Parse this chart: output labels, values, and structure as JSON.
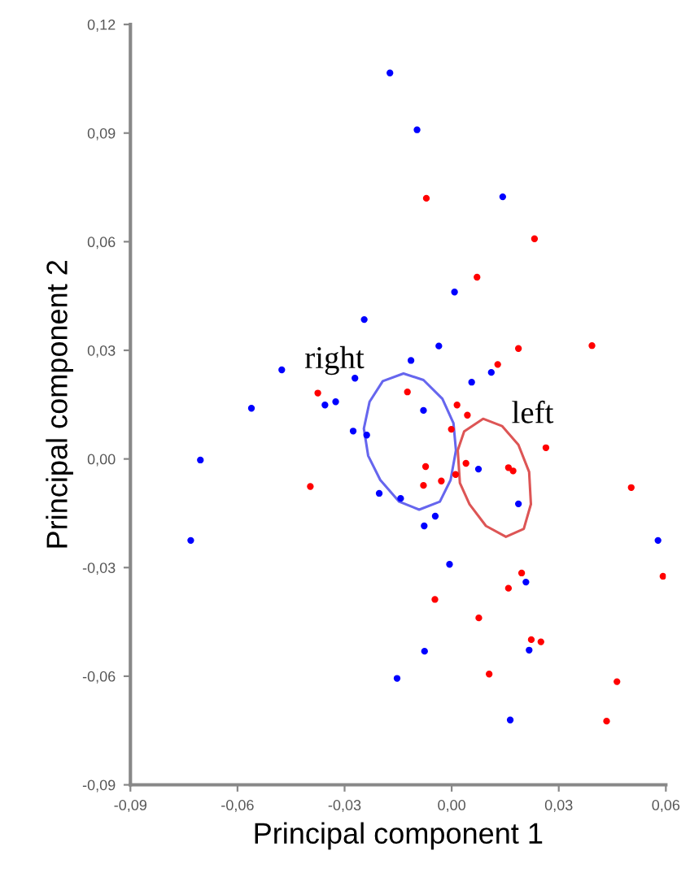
{
  "chart_data": {
    "type": "scatter",
    "xlabel": "Principal component 1",
    "ylabel": "Principal component 2",
    "xlim": [
      -0.09,
      0.06
    ],
    "ylim": [
      -0.09,
      0.12
    ],
    "xticks": [
      {
        "value": -0.09,
        "label": "-0,09"
      },
      {
        "value": -0.06,
        "label": "-0,06"
      },
      {
        "value": -0.03,
        "label": "-0,03"
      },
      {
        "value": 0.0,
        "label": "0,00"
      },
      {
        "value": 0.03,
        "label": "0,03"
      },
      {
        "value": 0.06,
        "label": "0,06"
      }
    ],
    "yticks": [
      {
        "value": -0.09,
        "label": "-0,09"
      },
      {
        "value": -0.06,
        "label": "-0,06"
      },
      {
        "value": -0.03,
        "label": "-0,03"
      },
      {
        "value": 0.0,
        "label": "0,00"
      },
      {
        "value": 0.03,
        "label": "0,03"
      },
      {
        "value": 0.06,
        "label": "0,06"
      },
      {
        "value": 0.09,
        "label": "0,09"
      },
      {
        "value": 0.12,
        "label": "0,12"
      }
    ],
    "grid": false,
    "marker": "circle",
    "annotations": [
      "right",
      "left"
    ],
    "series": [
      {
        "color": "#0000ff",
        "x": [
          -0.0173,
          -0.0097,
          0.0143,
          0.0008,
          -0.0245,
          -0.0036,
          -0.0476,
          -0.0114,
          0.0111,
          0.0056,
          -0.0271,
          -0.0355,
          -0.0325,
          -0.0561,
          -0.0079,
          -0.0276,
          -0.0238,
          -0.0704,
          0.0075,
          -0.0203,
          -0.0143,
          0.0187,
          -0.0046,
          -0.0077,
          -0.0731,
          0.0578,
          -0.0006,
          0.0208,
          0.0217,
          -0.0076,
          -0.0153,
          0.0164
        ],
        "values": [
          0.1066,
          0.0909,
          0.0724,
          0.0461,
          0.0385,
          0.0312,
          0.0246,
          0.0272,
          0.0239,
          0.0212,
          0.0223,
          0.0149,
          0.0158,
          0.014,
          0.0134,
          0.0077,
          0.0066,
          -0.0003,
          -0.0028,
          -0.0095,
          -0.0109,
          -0.0124,
          -0.0158,
          -0.0185,
          -0.0225,
          -0.0225,
          -0.0291,
          -0.034,
          -0.0528,
          -0.0531,
          -0.0606,
          -0.0721
        ]
      },
      {
        "color": "#ff0000",
        "x": [
          -0.0071,
          0.0232,
          0.0071,
          0.0187,
          0.0393,
          0.0129,
          -0.0375,
          -0.0124,
          0.0015,
          0.0044,
          -0.0001,
          0.0264,
          -0.0073,
          0.004,
          0.0159,
          0.0172,
          0.0011,
          -0.0396,
          -0.0079,
          -0.0029,
          0.0503,
          0.0592,
          0.0196,
          0.0159,
          -0.0047,
          0.0076,
          0.0223,
          0.025,
          0.0105,
          0.0463,
          0.0434
        ],
        "values": [
          0.072,
          0.0608,
          0.0502,
          0.0305,
          0.0313,
          0.0261,
          0.0182,
          0.0185,
          0.0149,
          0.0121,
          0.0082,
          0.0031,
          -0.0021,
          -0.0012,
          -0.0024,
          -0.0033,
          -0.0043,
          -0.0076,
          -0.0073,
          -0.0061,
          -0.0079,
          -0.0324,
          -0.0315,
          -0.0357,
          -0.0388,
          -0.0439,
          -0.0499,
          -0.0505,
          -0.0594,
          -0.0615,
          -0.0724
        ]
      }
    ]
  }
}
